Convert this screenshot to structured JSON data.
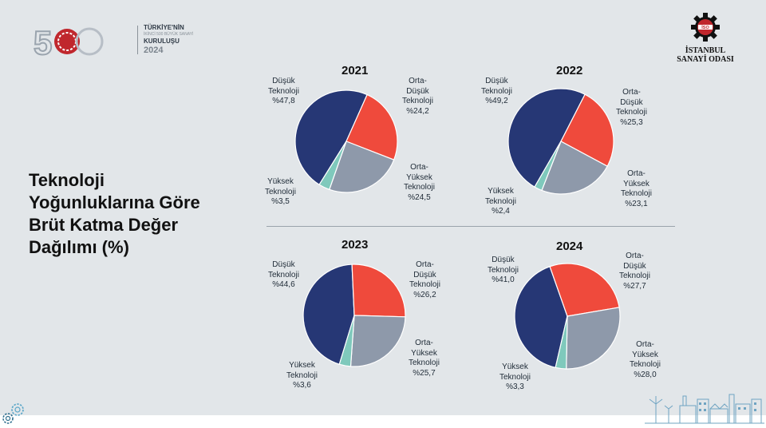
{
  "header": {
    "logo_left": {
      "number": "500",
      "line1": "TÜRKİYE'NİN",
      "line2": "İKİNCİ 500 BÜYÜK SANAYİ",
      "line3": "KURULUŞU",
      "year": "2024"
    },
    "logo_right": {
      "line1": "İSTANBUL",
      "line2": "SANAYİ ODASI",
      "badge": "İSO"
    }
  },
  "title_lines": [
    "Teknoloji",
    "Yoğunluklarına Göre",
    "Brüt Katma Değer",
    "Dağılımı (%)"
  ],
  "colors": {
    "low": "#263775",
    "mid_low": "#ef4a3c",
    "mid_high": "#8e99aa",
    "high": "#7fc9bc",
    "background": "#e2e6e9"
  },
  "chart_data": [
    {
      "type": "pie",
      "title": "2021",
      "categories": [
        "Düşük Teknoloji",
        "Orta-Düşük Teknoloji",
        "Orta-Yüksek Teknoloji",
        "Yüksek Teknoloji"
      ],
      "values": [
        47.8,
        24.2,
        24.5,
        3.5
      ],
      "labels": {
        "low": [
          "Düşük",
          "Teknoloji",
          "%47,8"
        ],
        "mid_low": [
          "Orta-",
          "Düşük",
          "Teknoloji",
          "%24,2"
        ],
        "mid_high": [
          "Orta-",
          "Yüksek",
          "Teknoloji",
          "%24,5"
        ],
        "high": [
          "Yüksek",
          "Teknoloji",
          "%3,5"
        ]
      }
    },
    {
      "type": "pie",
      "title": "2022",
      "categories": [
        "Düşük Teknoloji",
        "Orta-Düşük Teknoloji",
        "Orta-Yüksek Teknoloji",
        "Yüksek Teknoloji"
      ],
      "values": [
        49.2,
        25.3,
        23.1,
        2.4
      ],
      "labels": {
        "low": [
          "Düşük",
          "Teknoloji",
          "%49,2"
        ],
        "mid_low": [
          "Orta-",
          "Düşük",
          "Teknoloji",
          "%25,3"
        ],
        "mid_high": [
          "Orta-",
          "Yüksek",
          "Teknoloji",
          "%23,1"
        ],
        "high": [
          "Yüksek",
          "Teknoloji",
          "%2,4"
        ]
      }
    },
    {
      "type": "pie",
      "title": "2023",
      "categories": [
        "Düşük Teknoloji",
        "Orta-Düşük Teknoloji",
        "Orta-Yüksek Teknoloji",
        "Yüksek Teknoloji"
      ],
      "values": [
        44.6,
        26.2,
        25.7,
        3.6
      ],
      "labels": {
        "low": [
          "Düşük",
          "Teknoloji",
          "%44,6"
        ],
        "mid_low": [
          "Orta-",
          "Düşük",
          "Teknoloji",
          "%26,2"
        ],
        "mid_high": [
          "Orta-",
          "Yüksek",
          "Teknoloji",
          "%25,7"
        ],
        "high": [
          "Yüksek",
          "Teknoloji",
          "%3,6"
        ]
      }
    },
    {
      "type": "pie",
      "title": "2024",
      "categories": [
        "Düşük Teknoloji",
        "Orta-Düşük Teknoloji",
        "Orta-Yüksek Teknoloji",
        "Yüksek Teknoloji"
      ],
      "values": [
        41.0,
        27.7,
        28.0,
        3.3
      ],
      "labels": {
        "low": [
          "Düşük",
          "Teknoloji",
          "%41,0"
        ],
        "mid_low": [
          "Orta-",
          "Düşük",
          "Teknoloji",
          "%27,7"
        ],
        "mid_high": [
          "Orta-",
          "Yüksek",
          "Teknoloji",
          "%28,0"
        ],
        "high": [
          "Yüksek",
          "Teknoloji",
          "%3,3"
        ]
      }
    }
  ]
}
